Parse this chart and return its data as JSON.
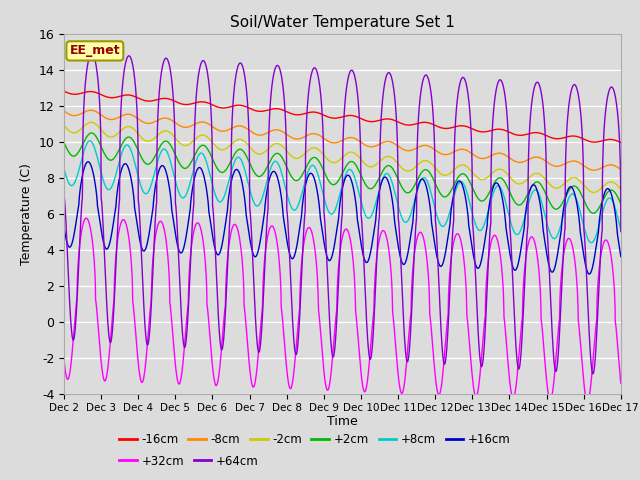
{
  "title": "Soil/Water Temperature Set 1",
  "xlabel": "Time",
  "ylabel": "Temperature (C)",
  "ylim": [
    -4,
    16
  ],
  "xlim": [
    0,
    15
  ],
  "xtick_labels": [
    "Dec 2",
    "Dec 3",
    "Dec 4",
    "Dec 5",
    "Dec 6",
    "Dec 7",
    "Dec 8",
    "Dec 9",
    "Dec 10",
    "Dec 11",
    "Dec 12",
    "Dec 13",
    "Dec 14",
    "Dec 15",
    "Dec 16",
    "Dec 17"
  ],
  "yticks": [
    -4,
    -2,
    0,
    2,
    4,
    6,
    8,
    10,
    12,
    14,
    16
  ],
  "annotation": "EE_met",
  "bg_color": "#dcdcdc",
  "series": [
    {
      "name": "-16cm",
      "color": "#ff0000",
      "start": 12.8,
      "end": 9.95,
      "amp": 0.12,
      "phase": 0.5
    },
    {
      "name": "-8cm",
      "color": "#ff8800",
      "start": 11.7,
      "end": 8.45,
      "amp": 0.2,
      "phase": 0.5
    },
    {
      "name": "-2cm",
      "color": "#cccc00",
      "start": 10.9,
      "end": 7.35,
      "amp": 0.35,
      "phase": 0.5
    },
    {
      "name": "+2cm",
      "color": "#00bb00",
      "start": 9.95,
      "end": 6.55,
      "amp": 0.7,
      "phase": 0.5
    },
    {
      "name": "+8cm",
      "color": "#00cccc",
      "start": 8.9,
      "end": 5.5,
      "amp": 1.3,
      "phase": 0.55
    },
    {
      "name": "+16cm",
      "color": "#0000cc",
      "start": 6.55,
      "end": 4.95,
      "amp": 2.4,
      "phase": 0.6
    },
    {
      "name": "+32cm",
      "color": "#ff00ff",
      "start": 1.3,
      "end": 0.0,
      "amp": 4.5,
      "phase": 0.65
    },
    {
      "name": "+64cm",
      "color": "#8800cc",
      "start": 7.0,
      "end": 5.0,
      "amp": 8.0,
      "phase": 0.5
    }
  ],
  "legend_order": [
    "-16cm",
    "-8cm",
    "-2cm",
    "+2cm",
    "+8cm",
    "+16cm",
    "+32cm",
    "+64cm"
  ]
}
